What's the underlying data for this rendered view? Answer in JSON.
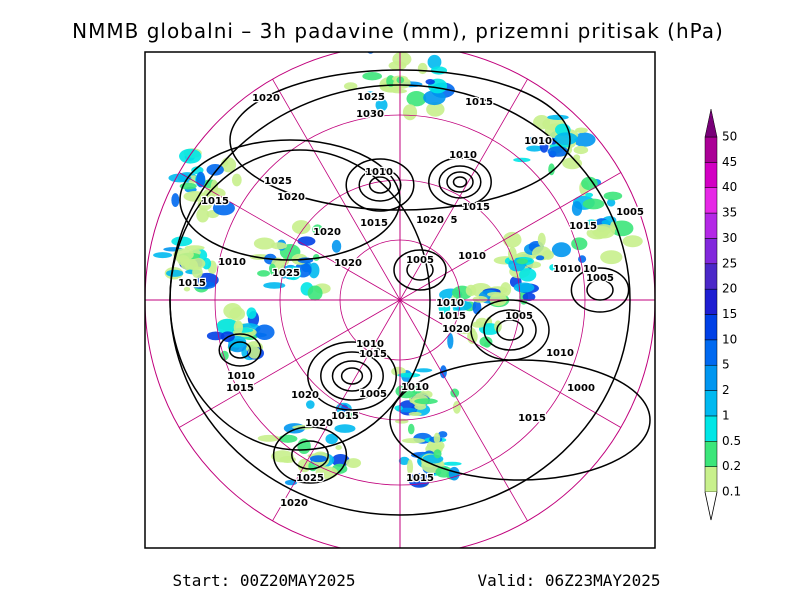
{
  "title": "NMMB globalni – 3h padavine (mm), prizemni pritisak (hPa)",
  "colorbar": {
    "labels": [
      "0.1",
      "0.2",
      "0.5",
      "1",
      "2",
      "5",
      "10",
      "15",
      "20",
      "25",
      "30",
      "35",
      "40",
      "45",
      "50"
    ],
    "colors": [
      "#c8f08c",
      "#3ce67a",
      "#00e6e6",
      "#00b9f0",
      "#0096f0",
      "#0069f0",
      "#0040e6",
      "#1e1ed2",
      "#4b28c8",
      "#8228dc",
      "#b428e6",
      "#e628e6",
      "#d200c3",
      "#aa0096",
      "#780078"
    ]
  },
  "isobar_labels": [
    "1020",
    "1025",
    "1015",
    "1030",
    "1010",
    "1010",
    "1010",
    "1025",
    "1020",
    "1015",
    "1015",
    "1020",
    "5",
    "1015",
    "1015",
    "1005",
    "1020",
    "1010",
    "1020",
    "1005",
    "1010",
    "1025",
    "1010",
    "10",
    "1005",
    "1015",
    "1010",
    "1015",
    "1020",
    "1005",
    "1010",
    "1015",
    "1010",
    "1010",
    "1015",
    "1005",
    "1010",
    "1000",
    "1020",
    "1015",
    "1020",
    "1015",
    "1025",
    "1015",
    "1020"
  ],
  "footer": {
    "start": "Start: 00Z20MAY2025",
    "valid": "Valid: 06Z23MAY2025"
  }
}
